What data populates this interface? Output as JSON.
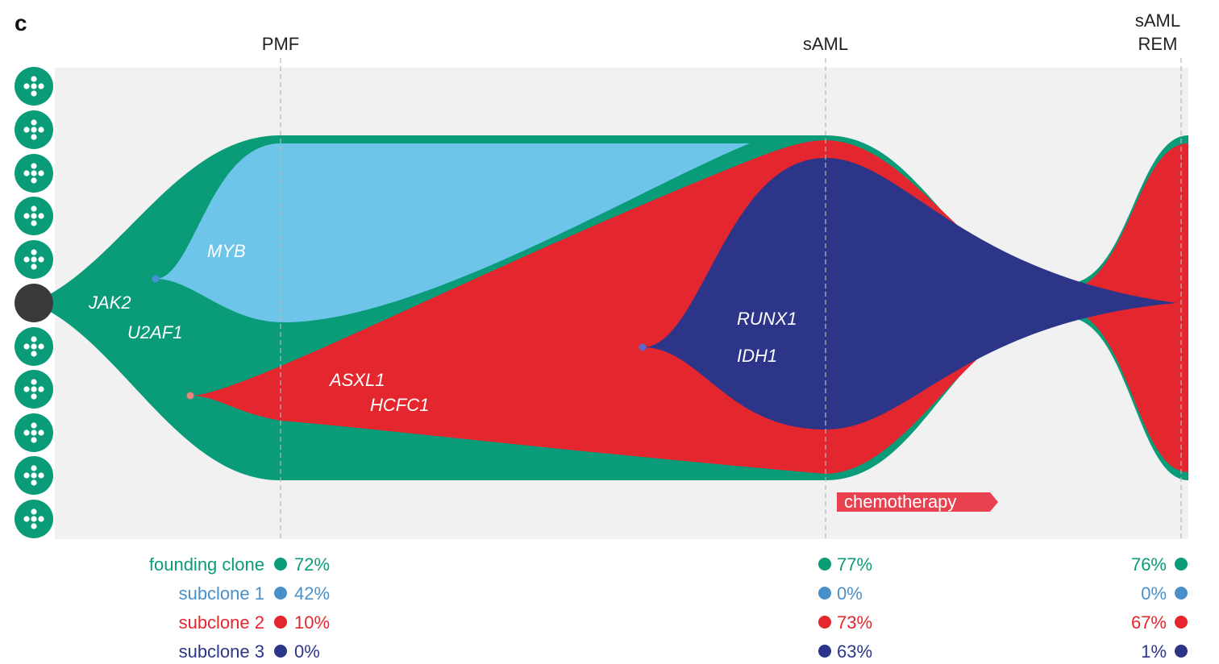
{
  "panel_letter": "c",
  "timepoints": {
    "pmf": "PMF",
    "saml": "sAML",
    "rem_line1": "sAML",
    "rem_line2": "REM"
  },
  "genes": {
    "jak2": "JAK2",
    "u2af1": "U2AF1",
    "myb": "MYB",
    "asxl1": "ASXL1",
    "hcfc1": "HCFC1",
    "runx1": "RUNX1",
    "idh1": "IDH1"
  },
  "therapy": {
    "label": "chemotherapy"
  },
  "colors": {
    "founding": "#0a9b78",
    "subclone1": "#6ec5ea",
    "subclone2": "#e4262f",
    "subclone3": "#2d3589",
    "background": "#f0f1f0",
    "therapy": "#e8414f"
  },
  "legend": {
    "names": [
      "founding clone",
      "subclone 1",
      "subclone 2",
      "subclone 3"
    ],
    "pmf": [
      "72%",
      "42%",
      "10%",
      "0%"
    ],
    "saml": [
      "77%",
      "0%",
      "73%",
      "63%"
    ],
    "rem": [
      "76%",
      "0%",
      "67%",
      "1%"
    ]
  }
}
